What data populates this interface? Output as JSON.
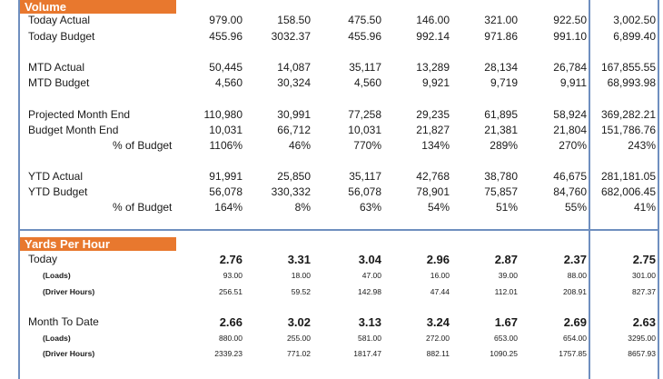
{
  "sections": {
    "volume": "Volume",
    "yards_per_hour": "Yards Per Hour"
  },
  "volume_rows": [
    {
      "label": "Today Actual",
      "values": [
        "979.00",
        "158.50",
        "475.50",
        "146.00",
        "321.00",
        "922.50",
        "3,002.50"
      ]
    },
    {
      "label": "Today Budget",
      "values": [
        "455.96",
        "3032.37",
        "455.96",
        "992.14",
        "971.86",
        "991.10",
        "6,899.40"
      ]
    },
    {
      "label": "MTD Actual",
      "values": [
        "50,445",
        "14,087",
        "35,117",
        "13,289",
        "28,134",
        "26,784",
        "167,855.55"
      ]
    },
    {
      "label": "MTD Budget",
      "values": [
        "4,560",
        "30,324",
        "4,560",
        "9,921",
        "9,719",
        "9,911",
        "68,993.98"
      ]
    },
    {
      "label": "Projected Month End",
      "values": [
        "110,980",
        "30,991",
        "77,258",
        "29,235",
        "61,895",
        "58,924",
        "369,282.21"
      ]
    },
    {
      "label": "Budget Month End",
      "values": [
        "10,031",
        "66,712",
        "10,031",
        "21,827",
        "21,381",
        "21,804",
        "151,786.76"
      ]
    },
    {
      "label": "% of Budget",
      "values": [
        "1106%",
        "46%",
        "770%",
        "134%",
        "289%",
        "270%",
        "243%"
      ]
    },
    {
      "label": "YTD Actual",
      "values": [
        "91,991",
        "25,850",
        "35,117",
        "42,768",
        "38,780",
        "46,675",
        "281,181.05"
      ]
    },
    {
      "label": "YTD Budget",
      "values": [
        "56,078",
        "330,332",
        "56,078",
        "78,901",
        "75,857",
        "84,760",
        "682,006.45"
      ]
    },
    {
      "label": "% of Budget",
      "values": [
        "164%",
        "8%",
        "63%",
        "54%",
        "51%",
        "55%",
        "41%"
      ]
    }
  ],
  "yph_rows": [
    {
      "label": "Today",
      "values": [
        "2.76",
        "3.31",
        "3.04",
        "2.96",
        "2.87",
        "2.37",
        "2.75"
      ]
    },
    {
      "label": "(Loads)",
      "values": [
        "93.00",
        "18.00",
        "47.00",
        "16.00",
        "39.00",
        "88.00",
        "301.00"
      ]
    },
    {
      "label": "(Driver Hours)",
      "values": [
        "256.51",
        "59.52",
        "142.98",
        "47.44",
        "112.01",
        "208.91",
        "827.37"
      ]
    },
    {
      "label": "Month To Date",
      "values": [
        "2.66",
        "3.02",
        "3.13",
        "3.24",
        "1.67",
        "2.69",
        "2.63"
      ]
    },
    {
      "label": "(Loads)",
      "values": [
        "880.00",
        "255.00",
        "581.00",
        "272.00",
        "653.00",
        "654.00",
        "3295.00"
      ]
    },
    {
      "label": "(Driver Hours)",
      "values": [
        "2339.23",
        "771.02",
        "1817.47",
        "882.11",
        "1090.25",
        "1757.85",
        "8657.93"
      ]
    }
  ]
}
